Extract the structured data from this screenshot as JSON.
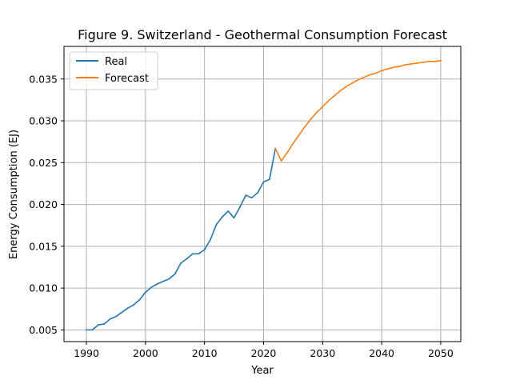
{
  "chart_data": {
    "type": "line",
    "title": "Figure 9. Switzerland - Geothermal Consumption Forecast",
    "xlabel": "Year",
    "ylabel": "Energy Consumption (EJ)",
    "xlim": [
      1986.2,
      2053.4
    ],
    "ylim": [
      0.0036,
      0.0389
    ],
    "xticks": [
      1990,
      2000,
      2010,
      2020,
      2030,
      2040,
      2050
    ],
    "yticks": [
      0.005,
      0.01,
      0.015,
      0.02,
      0.025,
      0.03,
      0.035
    ],
    "ytick_labels": [
      "0.005",
      "0.010",
      "0.015",
      "0.020",
      "0.025",
      "0.030",
      "0.035"
    ],
    "grid": true,
    "legend_position": "top-left",
    "series": [
      {
        "name": "Real",
        "color": "#1f77b4",
        "x": [
          1990,
          1991,
          1992,
          1993,
          1994,
          1995,
          1996,
          1997,
          1998,
          1999,
          2000,
          2001,
          2002,
          2003,
          2004,
          2005,
          2006,
          2007,
          2008,
          2009,
          2010,
          2011,
          2012,
          2013,
          2014,
          2015,
          2016,
          2017,
          2018,
          2019,
          2020,
          2021,
          2022
        ],
        "y": [
          0.005,
          0.005,
          0.0056,
          0.0057,
          0.0063,
          0.0066,
          0.0071,
          0.0076,
          0.008,
          0.0086,
          0.0095,
          0.0101,
          0.0105,
          0.0108,
          0.0111,
          0.0117,
          0.013,
          0.0135,
          0.0141,
          0.0141,
          0.0146,
          0.0158,
          0.0176,
          0.0185,
          0.0192,
          0.0184,
          0.0197,
          0.0211,
          0.0208,
          0.0214,
          0.0227,
          0.023,
          0.0267
        ]
      },
      {
        "name": "Forecast",
        "color": "#ff7f0e",
        "x": [
          2022,
          2023,
          2024,
          2025,
          2026,
          2027,
          2028,
          2029,
          2030,
          2031,
          2032,
          2033,
          2034,
          2035,
          2036,
          2037,
          2038,
          2039,
          2040,
          2041,
          2042,
          2043,
          2044,
          2045,
          2046,
          2047,
          2048,
          2049,
          2050
        ],
        "y": [
          0.0267,
          0.0252,
          0.0262,
          0.0273,
          0.0283,
          0.0293,
          0.0302,
          0.031,
          0.0317,
          0.0324,
          0.033,
          0.0336,
          0.0341,
          0.0345,
          0.0349,
          0.0352,
          0.0355,
          0.0357,
          0.036,
          0.0362,
          0.0364,
          0.0365,
          0.0367,
          0.0368,
          0.0369,
          0.037,
          0.0371,
          0.0371,
          0.0372
        ]
      }
    ]
  }
}
